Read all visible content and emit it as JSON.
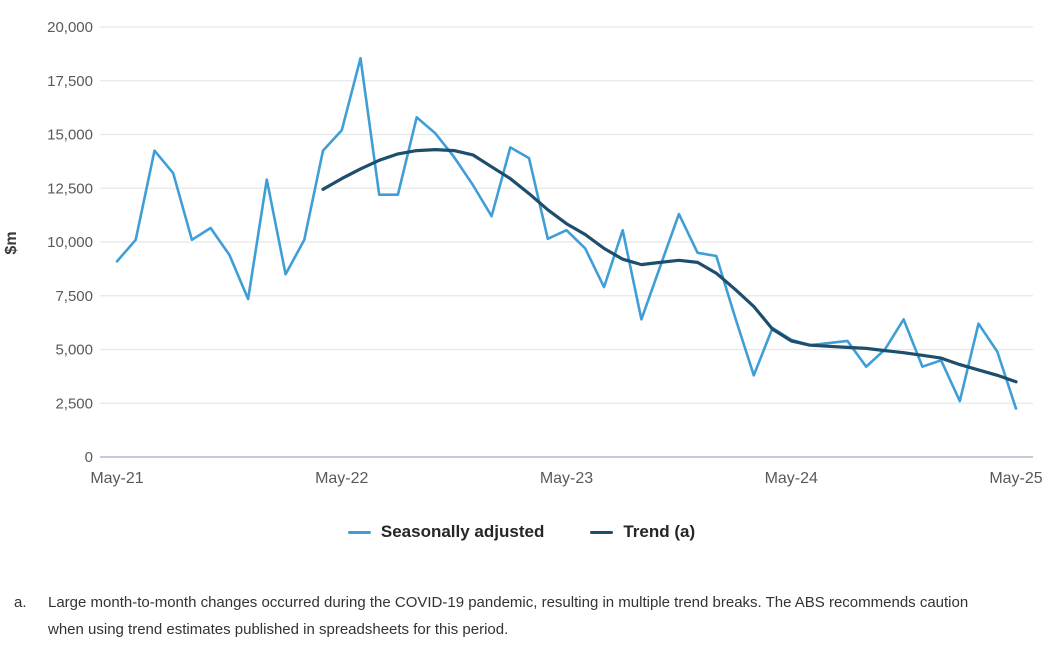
{
  "figure": {
    "y_axis_title": "$m",
    "footnote_marker": "a.",
    "footnote_text": "Large month-to-month changes occurred during the COVID-19 pandemic, resulting in multiple trend breaks. The ABS recommends caution when using trend estimates published in spreadsheets for this period."
  },
  "colors": {
    "seasonally_adjusted": "#3f9ed6",
    "trend": "#1d4e6b",
    "gridline": "#e7e7e7",
    "axis_line": "#c3ccd8",
    "tick_label": "#595959",
    "axis_title": "#3a3a3a"
  },
  "chart_data": {
    "type": "line",
    "title": "",
    "xlabel": "",
    "ylabel": "$m",
    "ylim": [
      0,
      20000
    ],
    "y_tick_step": 2500,
    "y_tick_labels": [
      "0",
      "2,500",
      "5,000",
      "7,500",
      "10,000",
      "12,500",
      "15,000",
      "17,500",
      "20,000"
    ],
    "grid": true,
    "legend_position": "bottom",
    "x_tick_labels": [
      "May-21",
      "May-22",
      "May-23",
      "May-24",
      "May-25"
    ],
    "x_tick_indices": [
      0,
      12,
      24,
      36,
      48
    ],
    "x_unit": "month",
    "x_range": [
      "May-21",
      "May-25"
    ],
    "series": [
      {
        "name": "Seasonally adjusted",
        "color": "#3f9ed6",
        "start_index": 0,
        "values": [
          9100,
          10100,
          14250,
          13200,
          10100,
          10650,
          9400,
          7350,
          12900,
          8500,
          10100,
          14250,
          15200,
          18550,
          12200,
          12200,
          15800,
          15050,
          13950,
          12650,
          11200,
          14400,
          13900,
          10150,
          10550,
          9700,
          7900,
          10550,
          6400,
          8850,
          11300,
          9500,
          9350,
          6500,
          3800,
          6000,
          5450,
          5200,
          5300,
          5400,
          4200,
          5000,
          6400,
          4200,
          4500,
          2600,
          6200,
          4900,
          2250
        ]
      },
      {
        "name": "Trend (a)",
        "color": "#1d4e6b",
        "start_index": 11,
        "values": [
          12450,
          12950,
          13400,
          13800,
          14100,
          14250,
          14300,
          14250,
          14050,
          13500,
          12950,
          12250,
          11500,
          10850,
          10350,
          9700,
          9200,
          8950,
          9050,
          9150,
          9050,
          8550,
          7800,
          7000,
          5950,
          5400,
          5200,
          5150,
          5100,
          5050,
          4950,
          4850,
          4730,
          4600,
          4300,
          4050,
          3800,
          3500
        ]
      }
    ]
  }
}
